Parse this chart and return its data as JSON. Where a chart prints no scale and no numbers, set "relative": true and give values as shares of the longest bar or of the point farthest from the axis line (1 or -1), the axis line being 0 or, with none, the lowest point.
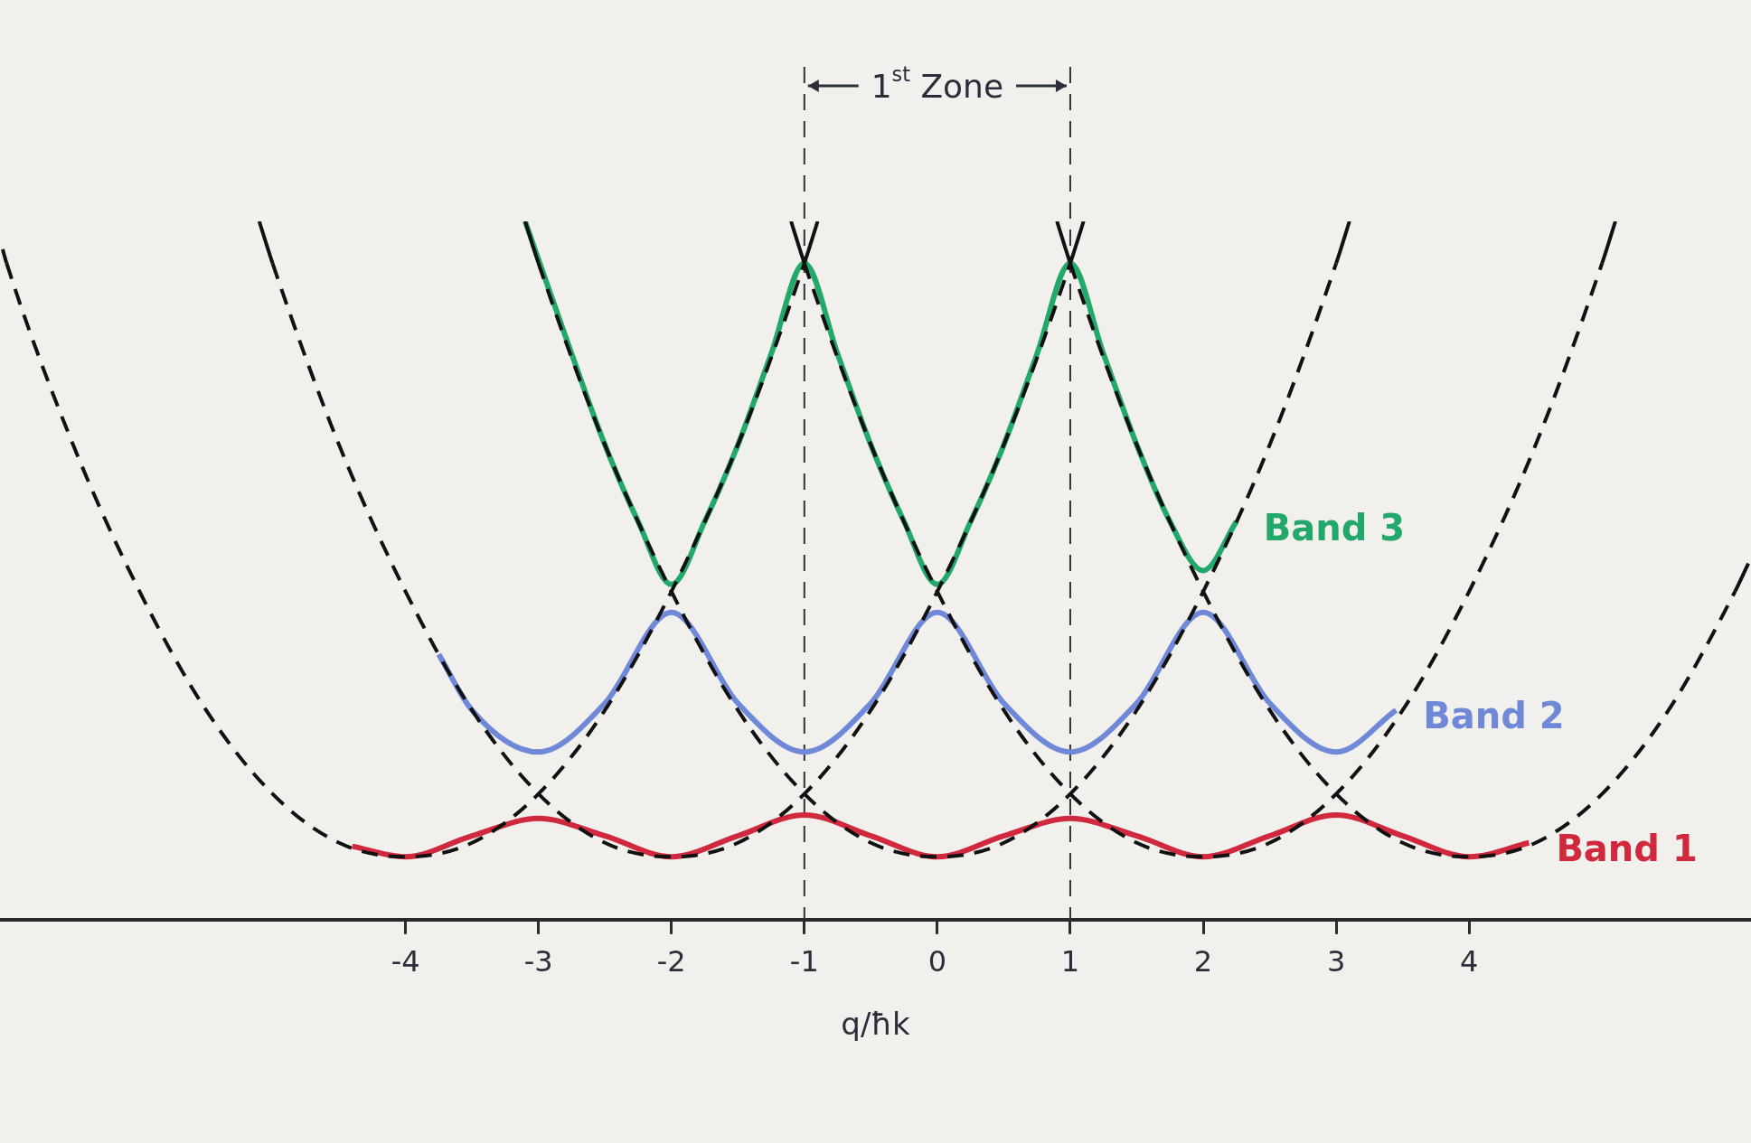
{
  "chart_data": {
    "type": "line",
    "xlabel": "q/ħk",
    "relative": true,
    "xlim": [
      -7.05,
      6.12
    ],
    "xticks": [
      -4,
      -3,
      -2,
      -1,
      0,
      1,
      2,
      3,
      4
    ],
    "legend": false,
    "marker": "none",
    "series": [
      {
        "color": "#111111",
        "line_style": "dashed",
        "x": [
          -7.03,
          -7,
          -6.5,
          -6,
          -5.5,
          -5,
          -4.5,
          -4,
          -3.5,
          -3,
          -2.5,
          -2,
          -1.5,
          -1,
          -0.9
        ],
        "values": [
          0.96,
          0.94,
          0.68,
          0.47,
          0.3,
          0.18,
          0.11,
          0.09,
          0.11,
          0.18,
          0.3,
          0.47,
          0.68,
          0.94,
          1.0
        ]
      },
      {
        "color": "#111111",
        "line_style": "dashed",
        "x": [
          -5.1,
          -5,
          -4.5,
          -4,
          -3.5,
          -3,
          -2.5,
          -2,
          -1.5,
          -1,
          -0.5,
          0,
          0.5,
          1,
          1.1
        ],
        "values": [
          1.0,
          0.94,
          0.68,
          0.47,
          0.3,
          0.18,
          0.11,
          0.09,
          0.11,
          0.18,
          0.3,
          0.47,
          0.68,
          0.94,
          1.0
        ]
      },
      {
        "color": "#111111",
        "line_style": "dashed",
        "x": [
          -3.1,
          -3,
          -2.5,
          -2,
          -1.5,
          -1,
          -0.5,
          0,
          0.5,
          1,
          1.5,
          2,
          2.5,
          3,
          3.1
        ],
        "values": [
          1.0,
          0.94,
          0.68,
          0.47,
          0.3,
          0.18,
          0.11,
          0.09,
          0.11,
          0.18,
          0.3,
          0.47,
          0.68,
          0.94,
          1.0
        ]
      },
      {
        "color": "#111111",
        "line_style": "dashed",
        "x": [
          -1.1,
          -1,
          -0.5,
          0,
          0.5,
          1,
          1.5,
          2,
          2.5,
          3,
          3.5,
          4,
          4.5,
          5,
          5.1
        ],
        "values": [
          1.0,
          0.94,
          0.68,
          0.47,
          0.3,
          0.18,
          0.11,
          0.09,
          0.11,
          0.18,
          0.3,
          0.47,
          0.68,
          0.94,
          1.0
        ]
      },
      {
        "color": "#111111",
        "line_style": "dashed",
        "x": [
          0.9,
          1,
          1.5,
          2,
          2.5,
          3,
          3.5,
          4,
          4.5,
          5,
          5.5,
          6,
          6.1
        ],
        "values": [
          1.0,
          0.94,
          0.68,
          0.47,
          0.3,
          0.18,
          0.11,
          0.09,
          0.11,
          0.18,
          0.3,
          0.47,
          0.51
        ]
      },
      {
        "name": "Band 1",
        "color": "#d0283c",
        "line_style": "solid",
        "x": [
          -4.4,
          -4,
          -3.5,
          -3,
          -2.5,
          -2,
          -1.5,
          -1,
          -0.5,
          0,
          0.5,
          1,
          1.5,
          2,
          2.5,
          3,
          3.5,
          4,
          4.45
        ],
        "values": [
          0.105,
          0.09,
          0.12,
          0.145,
          0.12,
          0.09,
          0.12,
          0.15,
          0.12,
          0.09,
          0.12,
          0.145,
          0.12,
          0.09,
          0.12,
          0.15,
          0.12,
          0.09,
          0.11
        ]
      },
      {
        "name": "Band 2",
        "color": "#7088d8",
        "line_style": "solid",
        "x": [
          -3.75,
          -3.5,
          -3,
          -2.5,
          -2,
          -1.5,
          -1,
          -0.5,
          0,
          0.5,
          1,
          1.5,
          2,
          2.5,
          3,
          3.45
        ],
        "values": [
          0.38,
          0.3,
          0.24,
          0.31,
          0.44,
          0.31,
          0.24,
          0.31,
          0.44,
          0.31,
          0.24,
          0.31,
          0.44,
          0.31,
          0.24,
          0.3
        ]
      },
      {
        "name": "Band 3",
        "color": "#22a86a",
        "line_style": "solid",
        "x": [
          -3.1,
          -2.75,
          -2.5,
          -2.25,
          -2,
          -1.75,
          -1.5,
          -1.25,
          -1,
          -0.75,
          -0.5,
          -0.25,
          0,
          0.25,
          0.5,
          0.75,
          1,
          1.25,
          1.5,
          1.75,
          2,
          2.25
        ],
        "values": [
          1.0,
          0.81,
          0.68,
          0.57,
          0.48,
          0.57,
          0.68,
          0.81,
          0.94,
          0.81,
          0.68,
          0.57,
          0.48,
          0.57,
          0.68,
          0.81,
          0.94,
          0.81,
          0.68,
          0.57,
          0.5,
          0.57
        ]
      }
    ],
    "ref_lines": [
      {
        "axis": "x",
        "value": -1,
        "color": "#333333",
        "line_style": "dashed"
      },
      {
        "axis": "x",
        "value": 1,
        "color": "#333333",
        "line_style": "dashed"
      }
    ],
    "annotations": [
      "1$^{st}$ Zone"
    ]
  }
}
